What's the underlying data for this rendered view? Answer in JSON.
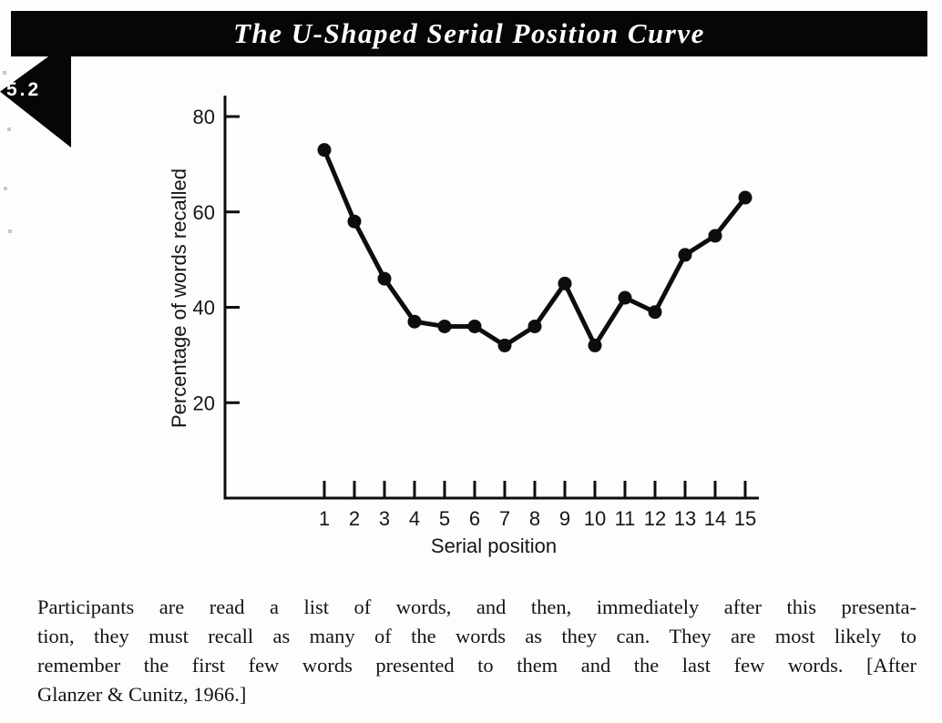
{
  "banner": {
    "title": "The U-Shaped Serial Position Curve",
    "figure_number": "5.2",
    "bg_color": "#060606",
    "text_color": "#ffffff"
  },
  "chart_data": {
    "type": "line",
    "title": "The U-Shaped Serial Position Curve",
    "xlabel": "Serial position",
    "ylabel": "Percentage of words recalled",
    "categories": [
      "1",
      "2",
      "3",
      "4",
      "5",
      "6",
      "7",
      "8",
      "9",
      "10",
      "11",
      "12",
      "13",
      "14",
      "15"
    ],
    "values": [
      73,
      58,
      46,
      37,
      36,
      36,
      32,
      36,
      45,
      32,
      42,
      39,
      51,
      55,
      63
    ],
    "yticks": [
      "20",
      "40",
      "60",
      "80"
    ],
    "ylim": [
      0,
      84
    ],
    "grid": false,
    "legend": null,
    "line_color": "#0d0d0d",
    "marker": "circle"
  },
  "caption": {
    "lines": [
      "Participants are read a list of words, and then, immediately after this presenta-",
      "tion, they must recall as many of the words as they can. They are most likely to",
      "remember the first few words presented to them and the last few words. [After",
      "Glanzer & Cunitz, 1966.]"
    ],
    "text": "Participants are read a list of words, and then, immediately after this presentation, they must recall as many of the words as they can. They are most likely to remember the first few words presented to them and the last few words. [After Glanzer & Cunitz, 1966.]"
  }
}
